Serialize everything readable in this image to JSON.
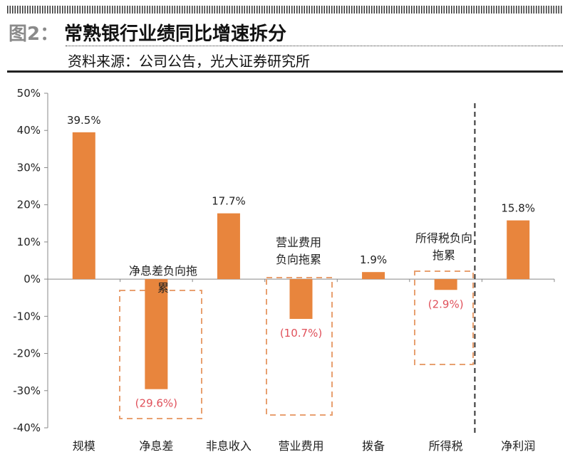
{
  "header": {
    "figure_label": "图2：",
    "title": "常熟银行业绩同比增速拆分",
    "source": "资料来源：公司公告，光大证券研究所"
  },
  "chart_data": {
    "type": "bar",
    "title": "常熟银行业绩同比增速拆分",
    "categories": [
      "规模",
      "净息差",
      "非息收入",
      "营业费用",
      "拨备",
      "所得税",
      "净利润"
    ],
    "values": [
      39.5,
      -29.6,
      17.7,
      -10.7,
      1.9,
      -2.9,
      15.8
    ],
    "data_labels": [
      "39.5%",
      "(29.6%)",
      "17.7%",
      "(10.7%)",
      "1.9%",
      "(2.9%)",
      "15.8%"
    ],
    "ylim": [
      -40,
      50
    ],
    "yticks": [
      50,
      40,
      30,
      20,
      10,
      0,
      -10,
      -20,
      -30,
      -40
    ],
    "ytick_labels": [
      "50%",
      "40%",
      "30%",
      "20%",
      "10%",
      "0%",
      "-10%",
      "-20%",
      "-30%",
      "-40%"
    ],
    "xlabel": "",
    "ylabel": "",
    "grid": false,
    "annotations": [
      {
        "category": "净息差",
        "text": "净息差负向拖累"
      },
      {
        "category": "营业费用",
        "text_lines": [
          "营业费用",
          "负向拖累"
        ]
      },
      {
        "category": "所得税",
        "text_lines": [
          "所得税负向",
          "拖累"
        ]
      }
    ],
    "separator_before": "净利润",
    "colors": {
      "bar": "#E8853D",
      "negative_label": "#E0505A",
      "box": "#E8A070",
      "text": "#222222"
    }
  }
}
